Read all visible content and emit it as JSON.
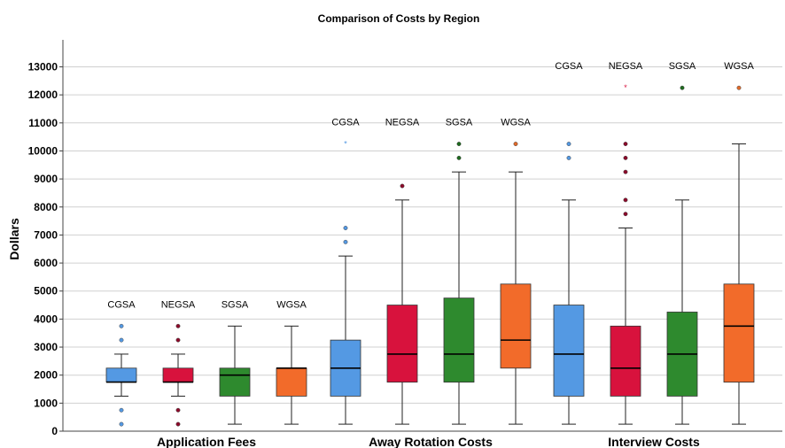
{
  "chart_data": {
    "type": "boxplot",
    "title": "Comparison of Costs by Region",
    "ylabel": "Dollars",
    "ylim": [
      0,
      13000
    ],
    "yticks": [
      0,
      1000,
      2000,
      3000,
      4000,
      5000,
      6000,
      7000,
      8000,
      9000,
      10000,
      11000,
      12000,
      13000
    ],
    "ytick_labels": [
      "0",
      "1000",
      "2000",
      "3000",
      "4000",
      "5000",
      "6000",
      "7000",
      "8000",
      "9000",
      "10000",
      "11000",
      "12000",
      "13000"
    ],
    "grid": true,
    "regions": [
      "CGSA",
      "NEGSA",
      "SGSA",
      "WGSA"
    ],
    "colors": {
      "CGSA": "#5499e3",
      "NEGSA": "#d8123d",
      "SGSA": "#2e8a2e",
      "WGSA": "#f26b2a"
    },
    "outlier_colors": {
      "CGSA": "#5499e3",
      "NEGSA": "#8b0a2a",
      "SGSA": "#1f6a1f",
      "WGSA": "#e06a2a"
    },
    "groups": [
      {
        "name": "Application Fees",
        "boxes": [
          {
            "region": "CGSA",
            "whisker_low": 1250,
            "q1": 1750,
            "median": 1750,
            "q3": 2250,
            "whisker_high": 2750,
            "outliers": [
              250,
              750,
              3250,
              3750
            ],
            "extremes": []
          },
          {
            "region": "NEGSA",
            "whisker_low": 1250,
            "q1": 1750,
            "median": 1750,
            "q3": 2250,
            "whisker_high": 2750,
            "outliers": [
              250,
              750,
              3250,
              3750
            ],
            "extremes": []
          },
          {
            "region": "SGSA",
            "whisker_low": 250,
            "q1": 1250,
            "median": 2000,
            "q3": 2250,
            "whisker_high": 3750,
            "outliers": [],
            "extremes": []
          },
          {
            "region": "WGSA",
            "whisker_low": 250,
            "q1": 1250,
            "median": 2250,
            "q3": 2250,
            "whisker_high": 3750,
            "outliers": [],
            "extremes": []
          }
        ]
      },
      {
        "name": "Away Rotation Costs",
        "boxes": [
          {
            "region": "CGSA",
            "whisker_low": 250,
            "q1": 1250,
            "median": 2250,
            "q3": 3250,
            "whisker_high": 6250,
            "outliers": [
              6750,
              7250
            ],
            "extremes": [
              10250
            ]
          },
          {
            "region": "NEGSA",
            "whisker_low": 250,
            "q1": 1750,
            "median": 2750,
            "q3": 4500,
            "whisker_high": 8250,
            "outliers": [
              8750
            ],
            "extremes": []
          },
          {
            "region": "SGSA",
            "whisker_low": 250,
            "q1": 1750,
            "median": 2750,
            "q3": 4750,
            "whisker_high": 9250,
            "outliers": [
              9750,
              10250
            ],
            "extremes": []
          },
          {
            "region": "WGSA",
            "whisker_low": 250,
            "q1": 2250,
            "median": 3250,
            "q3": 5250,
            "whisker_high": 9250,
            "outliers": [
              10250
            ],
            "extremes": []
          }
        ]
      },
      {
        "name": "Interview Costs",
        "boxes": [
          {
            "region": "CGSA",
            "whisker_low": 250,
            "q1": 1250,
            "median": 2750,
            "q3": 4500,
            "whisker_high": 8250,
            "outliers": [
              9750,
              10250
            ],
            "extremes": []
          },
          {
            "region": "NEGSA",
            "whisker_low": 250,
            "q1": 1250,
            "median": 2250,
            "q3": 3750,
            "whisker_high": 7250,
            "outliers": [
              7750,
              8250,
              9250,
              9750,
              10250
            ],
            "extremes": [
              12250
            ]
          },
          {
            "region": "SGSA",
            "whisker_low": 250,
            "q1": 1250,
            "median": 2750,
            "q3": 4250,
            "whisker_high": 8250,
            "outliers": [
              12250
            ],
            "extremes": []
          },
          {
            "region": "WGSA",
            "whisker_low": 250,
            "q1": 1750,
            "median": 3750,
            "q3": 5250,
            "whisker_high": 10250,
            "outliers": [
              12250
            ],
            "extremes": []
          }
        ]
      }
    ]
  }
}
